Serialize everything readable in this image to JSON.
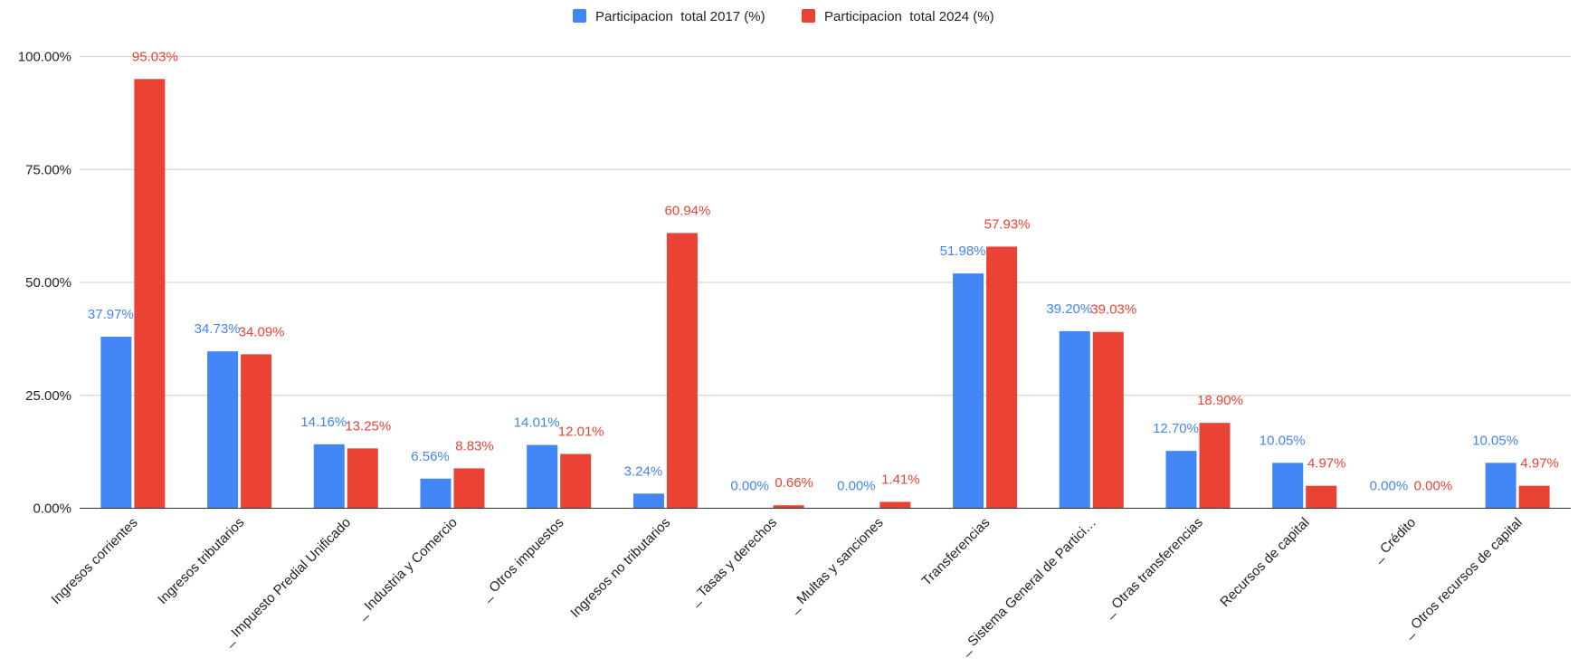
{
  "chart_data": {
    "type": "bar",
    "title": "",
    "xlabel": "",
    "ylabel": "",
    "ylim": [
      0,
      100
    ],
    "y_ticks": [
      "0.00%",
      "25.00%",
      "50.00%",
      "75.00%",
      "100.00%"
    ],
    "grid": true,
    "legend_position": "top",
    "categories": [
      "Ingresos corrientes",
      "Ingresos tributarios",
      "_ Impuesto Predial Unificado",
      "_ Industria y Comercio",
      "_ Otros impuestos",
      "Ingresos no tributarios",
      "_ Tasas y derechos",
      "_ Multas y sanciones",
      "Transferencias",
      "_ Sistema General de Partici…",
      "_ Otras transferencias",
      "Recursos de capital",
      "_ Crédito",
      "_ Otros recursos de capital"
    ],
    "series": [
      {
        "name": "Participacion  total 2017 (%)",
        "color": "#4285f4",
        "values": [
          37.97,
          34.73,
          14.16,
          6.56,
          14.01,
          3.24,
          0.0,
          0.0,
          51.98,
          39.2,
          12.7,
          10.05,
          0.0,
          10.05
        ],
        "labels": [
          "37.97%",
          "34.73%",
          "14.16%",
          "6.56%",
          "14.01%",
          "3.24%",
          "0.00%",
          "0.00%",
          "51.98%",
          "39.20%",
          "12.70%",
          "10.05%",
          "0.00%",
          "10.05%"
        ]
      },
      {
        "name": "Participacion  total 2024 (%)",
        "color": "#ea4335",
        "values": [
          95.03,
          34.09,
          13.25,
          8.83,
          12.01,
          60.94,
          0.66,
          1.41,
          57.93,
          39.03,
          18.9,
          4.97,
          0.0,
          4.97
        ],
        "labels": [
          "95.03%",
          "34.09%",
          "13.25%",
          "8.83%",
          "12.01%",
          "60.94%",
          "0.66%",
          "1.41%",
          "57.93%",
          "39.03%",
          "18.90%",
          "4.97%",
          "0.00%",
          "4.97%"
        ]
      }
    ]
  }
}
